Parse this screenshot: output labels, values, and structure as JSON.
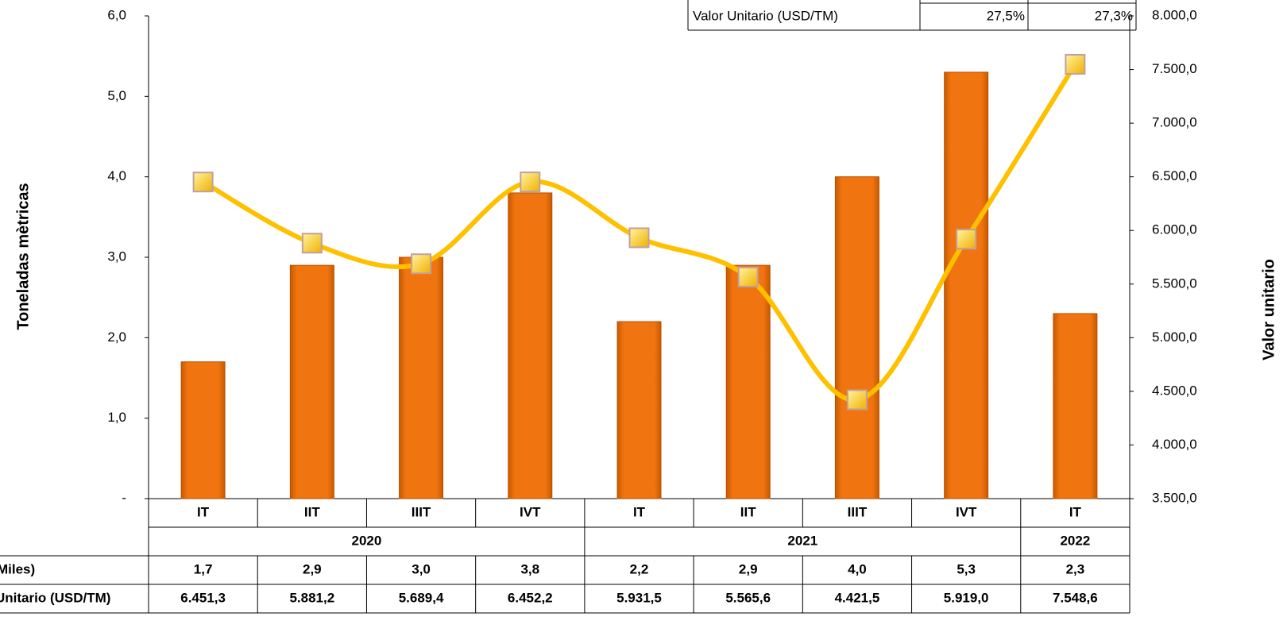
{
  "chart_data": {
    "type": "bar_line",
    "y_label": "Toneladas mètricas",
    "y2_label": "Valor unitario",
    "categories": [
      "IT",
      "IIT",
      "IIIT",
      "IVT",
      "IT",
      "IIT",
      "IIIT",
      "IVT",
      "IT"
    ],
    "category_years": [
      "2020",
      "2020",
      "2020",
      "2020",
      "2021",
      "2021",
      "2021",
      "2021",
      "2022"
    ],
    "series": [
      {
        "name": "Miles)",
        "type": "bar",
        "color": "#f07510",
        "axis": "y",
        "values": [
          1.7,
          2.9,
          3.0,
          3.8,
          2.2,
          2.9,
          4.0,
          5.3,
          2.3
        ],
        "value_labels": [
          "1,7",
          "2,9",
          "3,0",
          "3,8",
          "2,2",
          "2,9",
          "4,0",
          "5,3",
          "2,3"
        ]
      },
      {
        "name": "Unitario (USD/TM)",
        "type": "line",
        "color": "#ffc000",
        "axis": "y2",
        "values": [
          6451.3,
          5881.2,
          5689.4,
          6452.2,
          5931.5,
          5565.6,
          4421.5,
          5919.0,
          7548.6
        ],
        "value_labels": [
          "6.451,3",
          "5.881,2",
          "5.689,4",
          "6.452,2",
          "5.931,5",
          "5.565,6",
          "4.421,5",
          "5.919,0",
          "7.548,6"
        ]
      }
    ],
    "ylim": [
      0,
      6
    ],
    "yticks": [
      {
        "value": 0,
        "label": "-"
      },
      {
        "value": 1,
        "label": "1,0"
      },
      {
        "value": 2,
        "label": "2,0"
      },
      {
        "value": 3,
        "label": "3,0"
      },
      {
        "value": 4,
        "label": "4,0"
      },
      {
        "value": 5,
        "label": "5,0"
      },
      {
        "value": 6,
        "label": "6,0"
      }
    ],
    "y2lim": [
      3500,
      8000
    ],
    "y2ticks": [
      {
        "value": 3500,
        "label": "3.500,0"
      },
      {
        "value": 4000,
        "label": "4.000,0"
      },
      {
        "value": 4500,
        "label": "4.500,0"
      },
      {
        "value": 5000,
        "label": "5.000,0"
      },
      {
        "value": 5500,
        "label": "5.500,0"
      },
      {
        "value": 6000,
        "label": "6.000,0"
      },
      {
        "value": 6500,
        "label": "6.500,0"
      },
      {
        "value": 7000,
        "label": "7.000,0"
      },
      {
        "value": 7500,
        "label": "7.500,0"
      },
      {
        "value": 8000,
        "label": "8.000,0"
      }
    ],
    "inset_table": {
      "rows": [
        [
          "Valor Unitario (USD/TM)",
          "27,5%",
          "27,3%"
        ]
      ]
    }
  }
}
